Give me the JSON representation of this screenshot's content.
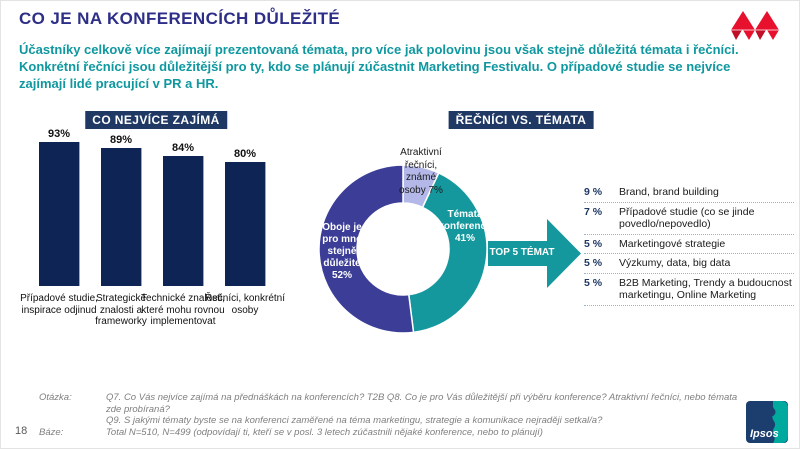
{
  "slide": {
    "title": "CO JE NA KONFERENCÍCH DŮLEŽITÉ",
    "subtitle_line1": "Účastníky celkově více zajímají prezentovaná témata, pro více jak polovinu jsou však stejně důležitá témata i řečníci.",
    "subtitle_line2": "Konkrétní řečníci jsou důležitější pro ty, kdo se plánují zúčastnit Marketing Festivalu. O případové studie se nejvíce",
    "subtitle_line3": "zajímají lidé pracující v PR a HR.",
    "page_number": "18"
  },
  "colors": {
    "title": "#2D2E87",
    "subtitle_teal": "#0F98A0",
    "band_navy": "#1F3864",
    "bar_navy": "#0D2455",
    "donut_indigo": "#3B3D96",
    "donut_teal": "#15989D",
    "donut_lavender": "#B3B8E8",
    "arrow_teal": "#15989D",
    "dotted_line": "#96B3DE",
    "logo_red": "#E8112D",
    "logo_red_dark": "#C00F27"
  },
  "chart_data": [
    {
      "type": "bar",
      "title": "CO NEJVÍCE ZAJÍMÁ",
      "categories": [
        "Případové studie, inspirace odjinud",
        "Strategické znalosti a frameworky",
        "Technické znalosti, které mohu rovnou implementovat",
        "Řečníci, konkrétní osoby"
      ],
      "values": [
        93,
        89,
        84,
        80
      ],
      "value_labels": [
        "93%",
        "89%",
        "84%",
        "80%"
      ],
      "ylim": [
        0,
        100
      ],
      "grid": false,
      "legend": false
    },
    {
      "type": "pie",
      "title": "ŘEČNÍCI VS. TÉMATA",
      "donut": true,
      "slices": [
        {
          "label": "Atraktivní řečníci, známé osoby",
          "value": 7,
          "display": "Atraktivní řečníci, známé osoby 7%",
          "color": "#B3B8E8"
        },
        {
          "label": "Témata konference",
          "value": 41,
          "display": "Témata konference 41%",
          "color": "#15989D"
        },
        {
          "label": "Oboje je pro mne stejně důležité",
          "value": 52,
          "display": "Oboje je pro mne stejně důležité 52%",
          "color": "#3B3D96"
        }
      ]
    }
  ],
  "arrow": {
    "label": "TOP 5 TÉMAT"
  },
  "top5": {
    "items": [
      {
        "pct": "9 %",
        "label": "Brand, brand building"
      },
      {
        "pct": "7 %",
        "label": "Případové studie (co se jinde povedlo/nepovedlo)"
      },
      {
        "pct": "5 %",
        "label": "Marketingové strategie"
      },
      {
        "pct": "5 %",
        "label": "Výzkumy, data, big data"
      },
      {
        "pct": "5 %",
        "label": "B2B Marketing, Trendy a budoucnost marketingu, Online Marketing"
      }
    ]
  },
  "footer": {
    "question_label": "Otázka:",
    "question_line1": "Q7. Co Vás nejvíce zajímá na přednáškách na konferencích? T2B Q8. Co je pro Vás důležitější při výběru konference? Atraktivní řečníci, nebo témata zde probíraná?",
    "question_line2": "Q9. S jakými tématy byste se na konferenci zaměřené na téma marketingu, strategie a komunikace nejraději setkal/a?",
    "base_label": "Báze:",
    "base_text": "Total N=510, N=499 (odpovídají ti, kteří se v posl. 3 letech zúčastnili nějaké konference, nebo to plánují)"
  },
  "logos": {
    "ipsos_text": "Ipsos"
  }
}
